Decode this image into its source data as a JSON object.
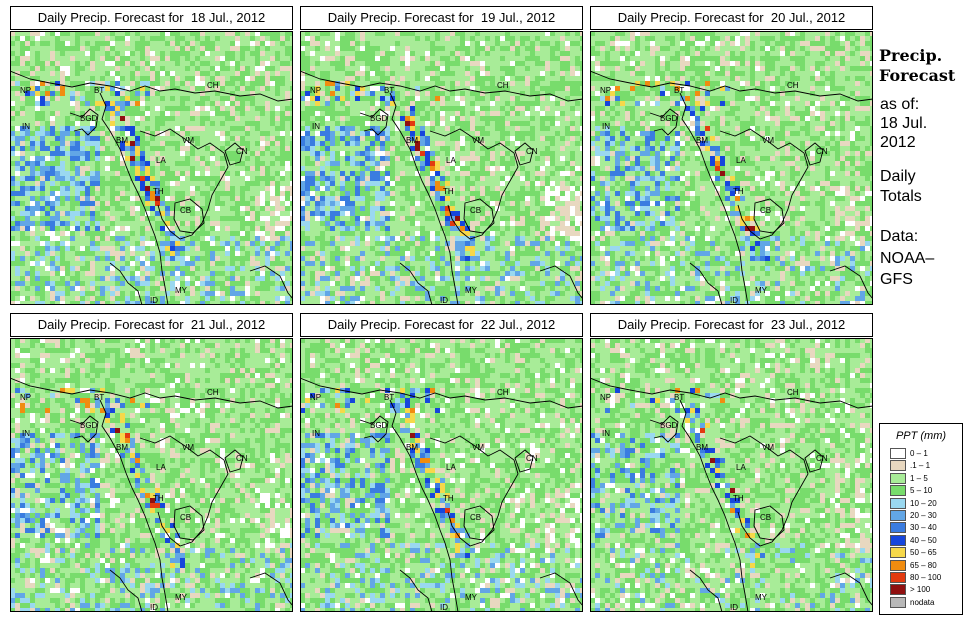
{
  "panels": [
    {
      "title": "Daily Precip. Forecast for  18 Jul., 2012",
      "wetness": 1.0
    },
    {
      "title": "Daily Precip. Forecast for  19 Jul., 2012",
      "wetness": 0.85
    },
    {
      "title": "Daily Precip. Forecast for  20 Jul., 2012",
      "wetness": 0.7
    },
    {
      "title": "Daily Precip. Forecast for  21 Jul., 2012",
      "wetness": 0.75
    },
    {
      "title": "Daily Precip. Forecast for  22 Jul., 2012",
      "wetness": 0.8
    },
    {
      "title": "Daily Precip. Forecast for  23 Jul., 2012",
      "wetness": 0.55
    }
  ],
  "country_labels": [
    "NP",
    "BT",
    "IN",
    "BGD",
    "BM",
    "CH",
    "VM",
    "LA",
    "TH",
    "CB",
    "MY",
    "ID",
    "CN"
  ],
  "sidebar": {
    "title_line1": "Precip.",
    "title_line2": "Forecast",
    "asof_line1": "as of:",
    "asof_line2": "18 Jul.",
    "asof_line3": "2012",
    "totals_line1": "Daily",
    "totals_line2": "Totals",
    "data_line1": "Data:",
    "data_line2": "NOAA–",
    "data_line3": "GFS"
  },
  "legend": {
    "title": "PPT (mm)",
    "items": [
      {
        "label": "0 – 1",
        "color": "#ffffff"
      },
      {
        "label": ".1 – 1",
        "color": "#e8d8c0"
      },
      {
        "label": "1 – 5",
        "color": "#a8ec98"
      },
      {
        "label": "5 – 10",
        "color": "#78dc6c"
      },
      {
        "label": "10 – 20",
        "color": "#9ad8f0"
      },
      {
        "label": "20 – 30",
        "color": "#62a6e6"
      },
      {
        "label": "30 – 40",
        "color": "#3a7ce0"
      },
      {
        "label": "40 – 50",
        "color": "#1646dc"
      },
      {
        "label": "50 – 65",
        "color": "#f6d84a"
      },
      {
        "label": "65 – 80",
        "color": "#f08c10"
      },
      {
        "label": "80 – 100",
        "color": "#e23a10"
      },
      {
        "label": "> 100",
        "color": "#901010"
      },
      {
        "label": "nodata",
        "color": "#b8b8b8"
      }
    ]
  }
}
